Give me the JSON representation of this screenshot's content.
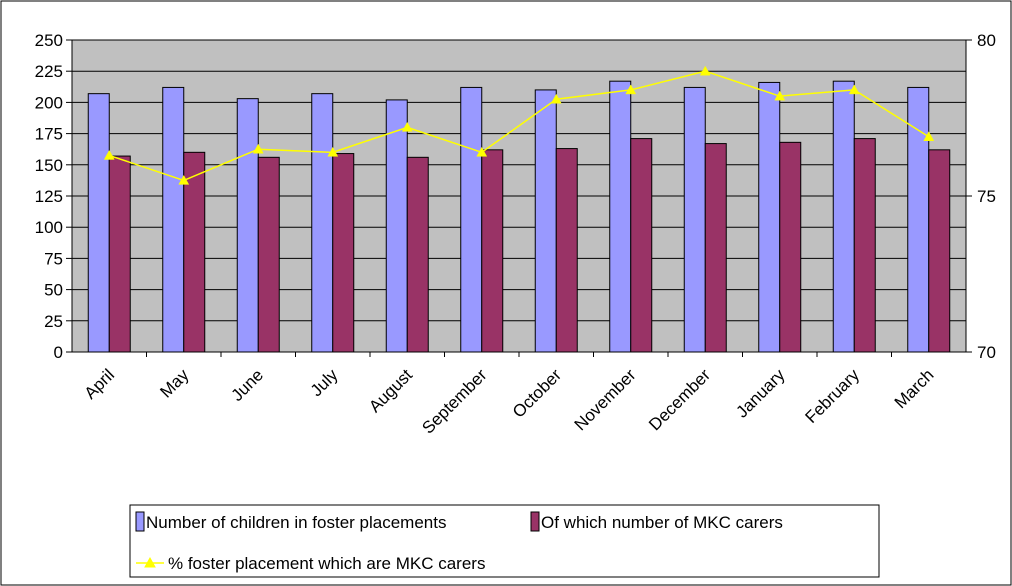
{
  "chart_data": {
    "type": "bar",
    "categories": [
      "April",
      "May",
      "June",
      "July",
      "August",
      "September",
      "October",
      "November",
      "December",
      "January",
      "February",
      "March"
    ],
    "series": [
      {
        "name": "Number of children in foster placements",
        "type": "bar",
        "axis": "left",
        "color": "#9999ff",
        "values": [
          207,
          212,
          203,
          207,
          202,
          212,
          210,
          217,
          212,
          216,
          217,
          212
        ]
      },
      {
        "name": "Of which number of MKC carers",
        "type": "bar",
        "axis": "left",
        "color": "#993366",
        "values": [
          157,
          160,
          156,
          159,
          156,
          162,
          163,
          171,
          167,
          168,
          171,
          162
        ]
      },
      {
        "name": "% foster placement which are MKC carers",
        "type": "line",
        "axis": "right",
        "color": "#ffff00",
        "marker": "triangle",
        "values": [
          76.3,
          75.5,
          76.5,
          76.4,
          77.2,
          76.4,
          78.1,
          78.4,
          79.0,
          78.2,
          78.4,
          76.9
        ]
      }
    ],
    "y_left": {
      "ylim": [
        0,
        250
      ],
      "ticks": [
        "0",
        "25",
        "50",
        "75",
        "100",
        "125",
        "150",
        "175",
        "200",
        "225",
        "250"
      ]
    },
    "y_right": {
      "ylim": [
        70,
        80
      ],
      "ticks": [
        "70",
        "75",
        "80"
      ]
    },
    "grid": true,
    "plot_background": "#c0c0c0",
    "legend_position": "bottom"
  }
}
